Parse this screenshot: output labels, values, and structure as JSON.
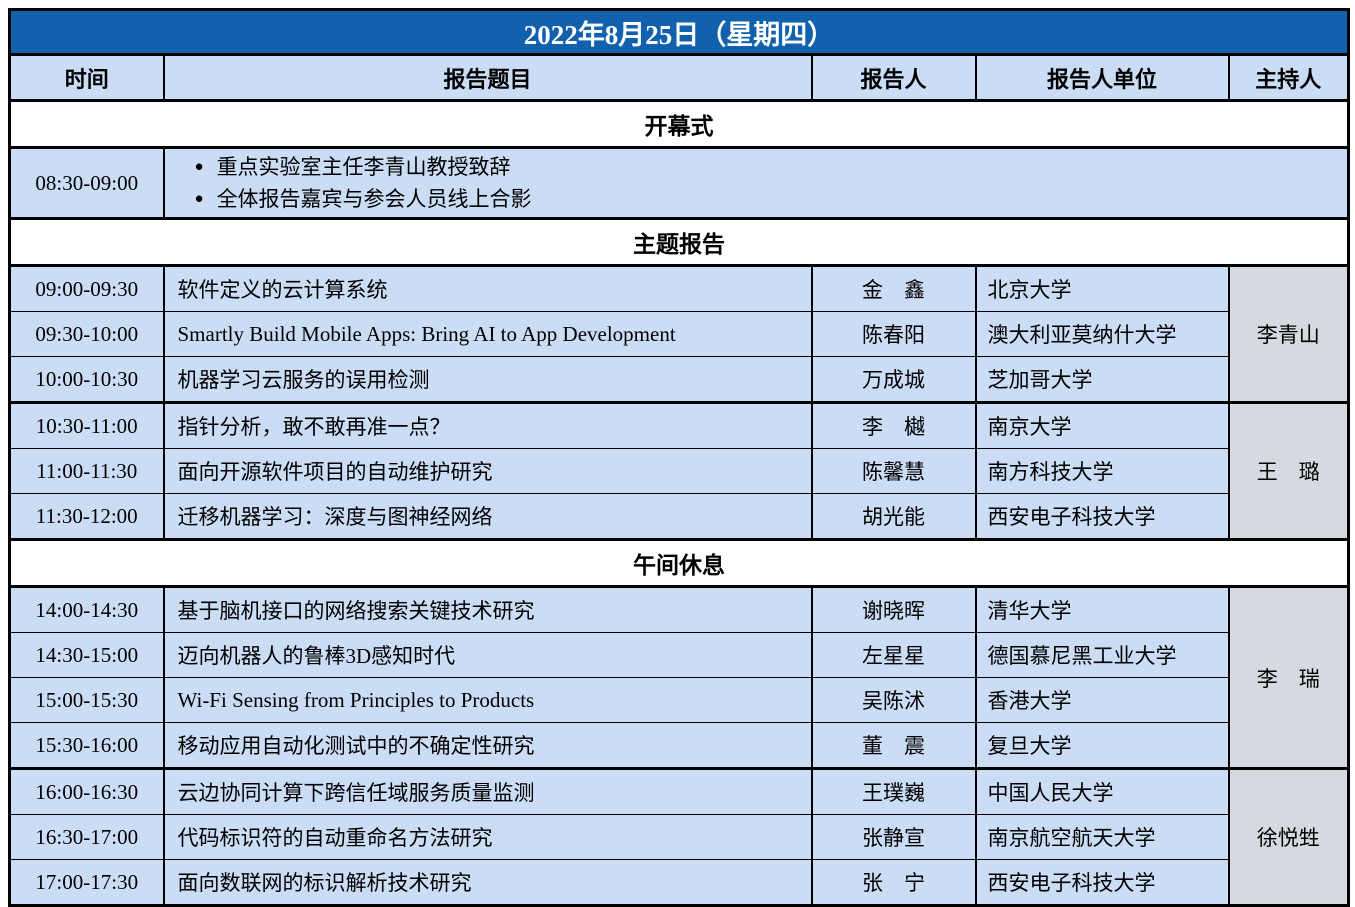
{
  "colors": {
    "title_bg": "#1161ae",
    "title_text": "#ffffff",
    "cell_blue": "#cbdcf5",
    "host_gray": "#d6dae0",
    "section_bg": "#ffffff",
    "border": "#000000"
  },
  "bullet_glyph": "●",
  "table": {
    "title": "2022年8月25日（星期四）",
    "columns": [
      {
        "key": "time",
        "label": "时间"
      },
      {
        "key": "title",
        "label": "报告题目"
      },
      {
        "key": "speaker",
        "label": "报告人"
      },
      {
        "key": "affiliation",
        "label": "报告人单位"
      },
      {
        "key": "host",
        "label": "主持人"
      }
    ],
    "rows": [
      {
        "type": "section",
        "label": "开幕式"
      },
      {
        "type": "event",
        "time": "08:30-09:00",
        "bullets": [
          "重点实验室主任李青山教授致辞",
          "全体报告嘉宾与参会人员线上合影"
        ]
      },
      {
        "type": "section",
        "label": "主题报告"
      },
      {
        "type": "talk",
        "time": "09:00-09:30",
        "title": "软件定义的云计算系统",
        "speaker": "金　鑫",
        "affiliation": "北京大学",
        "host": "李青山",
        "host_rowspan": 3,
        "group_start": true
      },
      {
        "type": "talk",
        "time": "09:30-10:00",
        "title": "Smartly Build Mobile Apps: Bring AI to App Development",
        "speaker": "陈春阳",
        "affiliation": "澳大利亚莫纳什大学"
      },
      {
        "type": "talk",
        "time": "10:00-10:30",
        "title": "机器学习云服务的误用检测",
        "speaker": "万成城",
        "affiliation": "芝加哥大学"
      },
      {
        "type": "talk",
        "time": "10:30-11:00",
        "title": "指针分析，敢不敢再准一点？",
        "speaker": "李　樾",
        "affiliation": "南京大学",
        "host": "王　璐",
        "host_rowspan": 3,
        "group_start": true
      },
      {
        "type": "talk",
        "time": "11:00-11:30",
        "title": "面向开源软件项目的自动维护研究",
        "speaker": "陈馨慧",
        "affiliation": "南方科技大学"
      },
      {
        "type": "talk",
        "time": "11:30-12:00",
        "title": "迁移机器学习：深度与图神经网络",
        "speaker": "胡光能",
        "affiliation": "西安电子科技大学"
      },
      {
        "type": "section",
        "label": "午间休息"
      },
      {
        "type": "talk",
        "time": "14:00-14:30",
        "title": "基于脑机接口的网络搜索关键技术研究",
        "speaker": "谢晓晖",
        "affiliation": "清华大学",
        "host": "李　瑞",
        "host_rowspan": 4,
        "group_start": true
      },
      {
        "type": "talk",
        "time": "14:30-15:00",
        "title": "迈向机器人的鲁棒3D感知时代",
        "speaker": "左星星",
        "affiliation": "德国慕尼黑工业大学"
      },
      {
        "type": "talk",
        "time": "15:00-15:30",
        "title": "Wi-Fi Sensing from Principles to Products",
        "speaker": "吴陈沭",
        "affiliation": "香港大学"
      },
      {
        "type": "talk",
        "time": "15:30-16:00",
        "title": "移动应用自动化测试中的不确定性研究",
        "speaker": "董　震",
        "affiliation": "复旦大学"
      },
      {
        "type": "talk",
        "time": "16:00-16:30",
        "title": "云边协同计算下跨信任域服务质量监测",
        "speaker": "王璞巍",
        "affiliation": "中国人民大学",
        "host": "徐悦甡",
        "host_rowspan": 3,
        "group_start": true
      },
      {
        "type": "talk",
        "time": "16:30-17:00",
        "title": "代码标识符的自动重命名方法研究",
        "speaker": "张静宣",
        "affiliation": "南京航空航天大学"
      },
      {
        "type": "talk",
        "time": "17:00-17:30",
        "title": "面向数联网的标识解析技术研究",
        "speaker": "张　宁",
        "affiliation": "西安电子科技大学"
      }
    ]
  }
}
